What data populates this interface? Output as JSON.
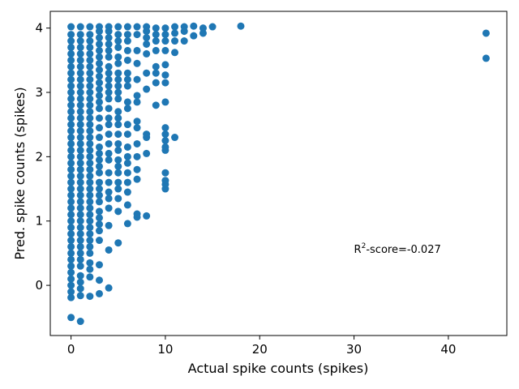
{
  "chart_data": {
    "type": "scatter",
    "xlabel": "Actual spike counts (spikes)",
    "ylabel": "Pred. spike counts (spikes)",
    "xlim": [
      -2.2,
      46.2
    ],
    "ylim": [
      -0.78,
      4.26
    ],
    "xticks": [
      0,
      10,
      20,
      30,
      40
    ],
    "yticks": [
      0,
      1,
      2,
      3,
      4
    ],
    "grid": false,
    "legend": "none",
    "marker_color": "#1f77b4",
    "annotation": {
      "prefix": "R",
      "superscript": "2",
      "suffix": "-score=-0.027",
      "x": 30,
      "y": 0.57
    },
    "points": [
      [
        0,
        -0.19
      ],
      [
        0,
        -0.1
      ],
      [
        0,
        0.0
      ],
      [
        0,
        0.1
      ],
      [
        0,
        0.2
      ],
      [
        0,
        0.3
      ],
      [
        0,
        0.4
      ],
      [
        0,
        0.5
      ],
      [
        0,
        0.6
      ],
      [
        0,
        0.7
      ],
      [
        0,
        0.8
      ],
      [
        0,
        0.9
      ],
      [
        0,
        1.0
      ],
      [
        0,
        1.1
      ],
      [
        0,
        1.2
      ],
      [
        0,
        1.3
      ],
      [
        0,
        1.4
      ],
      [
        0,
        1.5
      ],
      [
        0,
        1.6
      ],
      [
        0,
        1.7
      ],
      [
        0,
        1.8
      ],
      [
        0,
        1.9
      ],
      [
        0,
        2.0
      ],
      [
        0,
        2.1
      ],
      [
        0,
        2.2
      ],
      [
        0,
        2.3
      ],
      [
        0,
        2.4
      ],
      [
        0,
        2.5
      ],
      [
        0,
        2.6
      ],
      [
        0,
        2.7
      ],
      [
        0,
        2.8
      ],
      [
        0,
        2.9
      ],
      [
        0,
        3.0
      ],
      [
        0,
        3.1
      ],
      [
        0,
        3.2
      ],
      [
        0,
        3.3
      ],
      [
        0,
        3.4
      ],
      [
        0,
        3.5
      ],
      [
        0,
        3.6
      ],
      [
        0,
        3.7
      ],
      [
        0,
        3.8
      ],
      [
        0,
        3.9
      ],
      [
        0,
        4.02
      ],
      [
        0,
        -0.5
      ],
      [
        1,
        -0.16
      ],
      [
        1,
        -0.05
      ],
      [
        1,
        0.05
      ],
      [
        1,
        0.15
      ],
      [
        1,
        0.3
      ],
      [
        1,
        0.4
      ],
      [
        1,
        0.5
      ],
      [
        1,
        0.6
      ],
      [
        1,
        0.7
      ],
      [
        1,
        0.8
      ],
      [
        1,
        0.9
      ],
      [
        1,
        1.0
      ],
      [
        1,
        1.1
      ],
      [
        1,
        1.2
      ],
      [
        1,
        1.3
      ],
      [
        1,
        1.4
      ],
      [
        1,
        1.5
      ],
      [
        1,
        1.6
      ],
      [
        1,
        1.7
      ],
      [
        1,
        1.8
      ],
      [
        1,
        1.9
      ],
      [
        1,
        2.0
      ],
      [
        1,
        2.1
      ],
      [
        1,
        2.2
      ],
      [
        1,
        2.3
      ],
      [
        1,
        2.4
      ],
      [
        1,
        2.5
      ],
      [
        1,
        2.6
      ],
      [
        1,
        2.7
      ],
      [
        1,
        2.8
      ],
      [
        1,
        2.9
      ],
      [
        1,
        3.0
      ],
      [
        1,
        3.1
      ],
      [
        1,
        3.2
      ],
      [
        1,
        3.3
      ],
      [
        1,
        3.4
      ],
      [
        1,
        3.5
      ],
      [
        1,
        3.6
      ],
      [
        1,
        3.7
      ],
      [
        1,
        3.8
      ],
      [
        1,
        3.9
      ],
      [
        1,
        4.02
      ],
      [
        1,
        -0.56
      ],
      [
        2,
        -0.17
      ],
      [
        2,
        0.13
      ],
      [
        2,
        0.25
      ],
      [
        2,
        0.35
      ],
      [
        2,
        0.5
      ],
      [
        2,
        0.6
      ],
      [
        2,
        0.7
      ],
      [
        2,
        0.8
      ],
      [
        2,
        0.9
      ],
      [
        2,
        1.0
      ],
      [
        2,
        1.1
      ],
      [
        2,
        1.2
      ],
      [
        2,
        1.3
      ],
      [
        2,
        1.4
      ],
      [
        2,
        1.5
      ],
      [
        2,
        1.6
      ],
      [
        2,
        1.7
      ],
      [
        2,
        1.8
      ],
      [
        2,
        1.9
      ],
      [
        2,
        2.0
      ],
      [
        2,
        2.1
      ],
      [
        2,
        2.2
      ],
      [
        2,
        2.3
      ],
      [
        2,
        2.4
      ],
      [
        2,
        2.5
      ],
      [
        2,
        2.6
      ],
      [
        2,
        2.7
      ],
      [
        2,
        2.8
      ],
      [
        2,
        2.9
      ],
      [
        2,
        3.0
      ],
      [
        2,
        3.1
      ],
      [
        2,
        3.2
      ],
      [
        2,
        3.3
      ],
      [
        2,
        3.4
      ],
      [
        2,
        3.5
      ],
      [
        2,
        3.6
      ],
      [
        2,
        3.7
      ],
      [
        2,
        3.8
      ],
      [
        2,
        3.9
      ],
      [
        2,
        4.02
      ],
      [
        3,
        -0.13
      ],
      [
        3,
        0.08
      ],
      [
        3,
        0.32
      ],
      [
        3,
        0.7
      ],
      [
        3,
        0.85
      ],
      [
        3,
        0.95
      ],
      [
        3,
        1.05
      ],
      [
        3,
        1.15
      ],
      [
        3,
        1.3
      ],
      [
        3,
        1.4
      ],
      [
        3,
        1.5
      ],
      [
        3,
        1.6
      ],
      [
        3,
        1.75
      ],
      [
        3,
        1.85
      ],
      [
        3,
        1.95
      ],
      [
        3,
        2.05
      ],
      [
        3,
        2.15
      ],
      [
        3,
        2.3
      ],
      [
        3,
        2.45
      ],
      [
        3,
        2.6
      ],
      [
        3,
        2.75
      ],
      [
        3,
        2.85
      ],
      [
        3,
        2.95
      ],
      [
        3,
        3.05
      ],
      [
        3,
        3.15
      ],
      [
        3,
        3.25
      ],
      [
        3,
        3.35
      ],
      [
        3,
        3.45
      ],
      [
        3,
        3.55
      ],
      [
        3,
        3.65
      ],
      [
        3,
        3.75
      ],
      [
        3,
        3.85
      ],
      [
        3,
        3.95
      ],
      [
        3,
        4.02
      ],
      [
        4,
        -0.04
      ],
      [
        4,
        0.55
      ],
      [
        4,
        0.93
      ],
      [
        4,
        1.2
      ],
      [
        4,
        1.35
      ],
      [
        4,
        1.45
      ],
      [
        4,
        1.6
      ],
      [
        4,
        1.75
      ],
      [
        4,
        1.95
      ],
      [
        4,
        2.05
      ],
      [
        4,
        2.2
      ],
      [
        4,
        2.35
      ],
      [
        4,
        2.5
      ],
      [
        4,
        2.6
      ],
      [
        4,
        2.75
      ],
      [
        4,
        2.9
      ],
      [
        4,
        3.0
      ],
      [
        4,
        3.1
      ],
      [
        4,
        3.2
      ],
      [
        4,
        3.3
      ],
      [
        4,
        3.4
      ],
      [
        4,
        3.55
      ],
      [
        4,
        3.65
      ],
      [
        4,
        3.75
      ],
      [
        4,
        3.85
      ],
      [
        4,
        3.95
      ],
      [
        4,
        4.02
      ],
      [
        5,
        0.66
      ],
      [
        5,
        1.15
      ],
      [
        5,
        1.35
      ],
      [
        5,
        1.5
      ],
      [
        5,
        1.6
      ],
      [
        5,
        1.75
      ],
      [
        5,
        1.85
      ],
      [
        5,
        1.95
      ],
      [
        5,
        2.1
      ],
      [
        5,
        2.2
      ],
      [
        5,
        2.35
      ],
      [
        5,
        2.5
      ],
      [
        5,
        2.6
      ],
      [
        5,
        2.7
      ],
      [
        5,
        2.9
      ],
      [
        5,
        3.0
      ],
      [
        5,
        3.1
      ],
      [
        5,
        3.2
      ],
      [
        5,
        3.3
      ],
      [
        5,
        3.45
      ],
      [
        5,
        3.55
      ],
      [
        5,
        3.7
      ],
      [
        5,
        3.8
      ],
      [
        5,
        3.9
      ],
      [
        5,
        4.02
      ],
      [
        6,
        0.96
      ],
      [
        6,
        1.25
      ],
      [
        6,
        1.45
      ],
      [
        6,
        1.6
      ],
      [
        6,
        1.75
      ],
      [
        6,
        1.9
      ],
      [
        6,
        2.0
      ],
      [
        6,
        2.15
      ],
      [
        6,
        2.35
      ],
      [
        6,
        2.5
      ],
      [
        6,
        2.75
      ],
      [
        6,
        2.85
      ],
      [
        6,
        3.1
      ],
      [
        6,
        3.2
      ],
      [
        6,
        3.3
      ],
      [
        6,
        3.5
      ],
      [
        6,
        3.65
      ],
      [
        6,
        3.8
      ],
      [
        6,
        3.9
      ],
      [
        6,
        4.02
      ],
      [
        7,
        1.06
      ],
      [
        7,
        1.11
      ],
      [
        7,
        1.65
      ],
      [
        7,
        1.8
      ],
      [
        7,
        2.0
      ],
      [
        7,
        2.2
      ],
      [
        7,
        2.45
      ],
      [
        7,
        2.55
      ],
      [
        7,
        2.85
      ],
      [
        7,
        2.95
      ],
      [
        7,
        3.2
      ],
      [
        7,
        3.45
      ],
      [
        7,
        3.65
      ],
      [
        7,
        3.9
      ],
      [
        7,
        4.02
      ],
      [
        8,
        1.08
      ],
      [
        8,
        2.05
      ],
      [
        8,
        2.3
      ],
      [
        8,
        2.35
      ],
      [
        8,
        3.05
      ],
      [
        8,
        3.3
      ],
      [
        8,
        3.6
      ],
      [
        8,
        3.75
      ],
      [
        8,
        3.85
      ],
      [
        8,
        3.95
      ],
      [
        8,
        4.02
      ],
      [
        9,
        2.8
      ],
      [
        9,
        3.15
      ],
      [
        9,
        3.3
      ],
      [
        9,
        3.4
      ],
      [
        9,
        3.65
      ],
      [
        9,
        3.8
      ],
      [
        9,
        3.9
      ],
      [
        9,
        4.0
      ],
      [
        10,
        1.5
      ],
      [
        10,
        1.57
      ],
      [
        10,
        1.63
      ],
      [
        10,
        1.75
      ],
      [
        10,
        2.1
      ],
      [
        10,
        2.15
      ],
      [
        10,
        2.25
      ],
      [
        10,
        2.35
      ],
      [
        10,
        2.45
      ],
      [
        10,
        2.85
      ],
      [
        10,
        3.15
      ],
      [
        10,
        3.27
      ],
      [
        10,
        3.43
      ],
      [
        10,
        3.65
      ],
      [
        10,
        3.8
      ],
      [
        10,
        3.9
      ],
      [
        10,
        4.0
      ],
      [
        11,
        2.3
      ],
      [
        11,
        3.62
      ],
      [
        11,
        3.8
      ],
      [
        11,
        3.92
      ],
      [
        11,
        4.02
      ],
      [
        12,
        3.8
      ],
      [
        12,
        3.95
      ],
      [
        12,
        4.02
      ],
      [
        13,
        3.88
      ],
      [
        13,
        4.03
      ],
      [
        14,
        3.92
      ],
      [
        14,
        4.0
      ],
      [
        15,
        4.02
      ],
      [
        18,
        4.03
      ],
      [
        44,
        3.92
      ],
      [
        44,
        3.53
      ]
    ]
  }
}
